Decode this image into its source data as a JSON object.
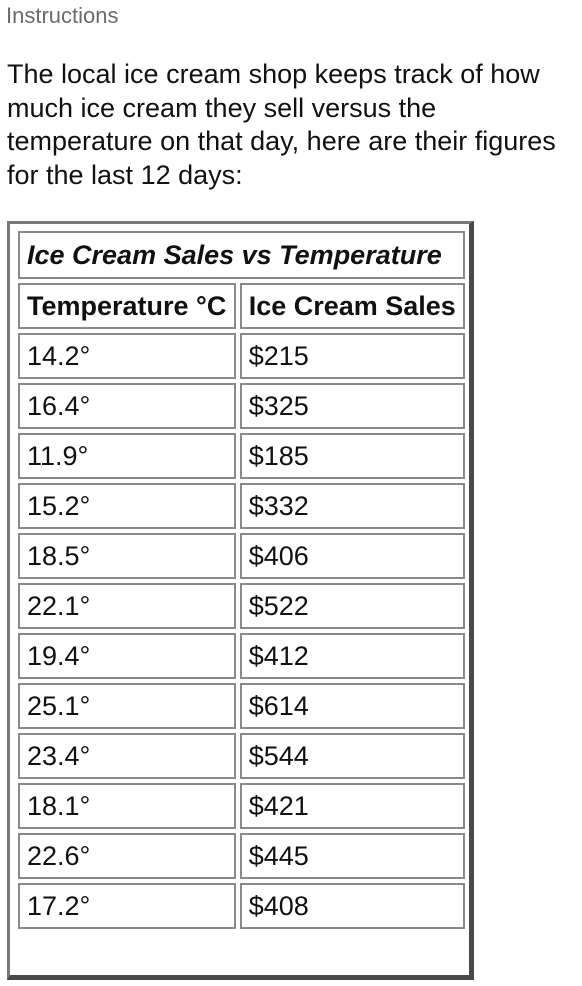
{
  "page": {
    "heading": "Instructions",
    "intro": "The local ice cream shop keeps track of how much ice cream they sell versus the temperature on that day, here are their figures for the last 12 days:"
  },
  "table": {
    "caption": "Ice Cream Sales vs Temperature",
    "columns": [
      "Temperature °C",
      "Ice Cream Sales"
    ],
    "rows": [
      [
        "14.2°",
        "$215"
      ],
      [
        "16.4°",
        "$325"
      ],
      [
        "11.9°",
        "$185"
      ],
      [
        "15.2°",
        "$332"
      ],
      [
        "18.5°",
        "$406"
      ],
      [
        "22.1°",
        "$522"
      ],
      [
        "19.4°",
        "$412"
      ],
      [
        "25.1°",
        "$614"
      ],
      [
        "23.4°",
        "$544"
      ],
      [
        "18.1°",
        "$421"
      ],
      [
        "22.6°",
        "$445"
      ],
      [
        "17.2°",
        "$408"
      ]
    ]
  }
}
